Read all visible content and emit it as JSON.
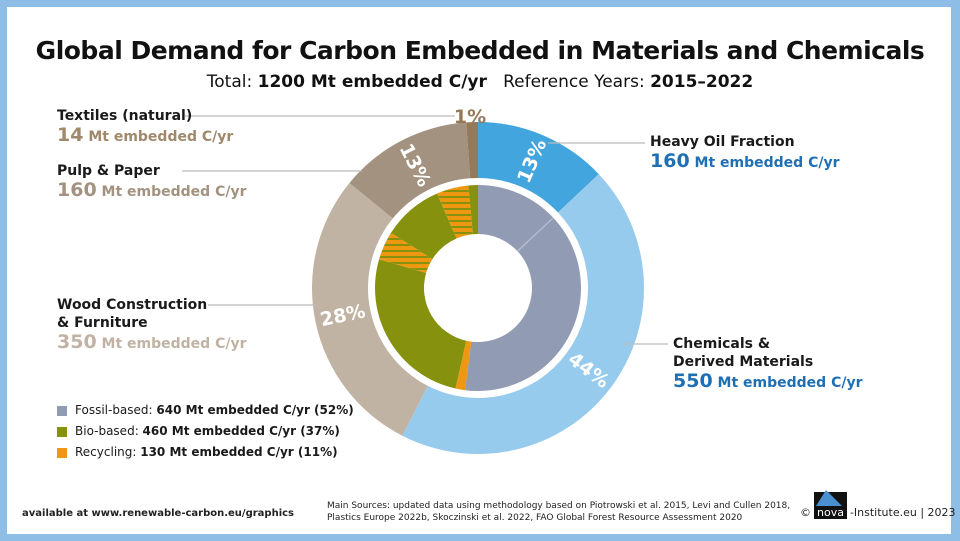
{
  "title": "Global Demand for Carbon Embedded in Materials and Chemicals",
  "subtitle": {
    "prefix": "Total: ",
    "total": "1200 Mt embedded C/yr",
    "mid": "   Reference Years: ",
    "years": "2015–2022"
  },
  "chart_data": {
    "type": "pie",
    "title": "Global Demand for Carbon Embedded in Materials and Chemicals",
    "outer_ring": [
      {
        "name": "Heavy Oil Fraction",
        "value": 160,
        "unit": "Mt embedded C/yr",
        "pct_label": "13%",
        "color": "#42a5de"
      },
      {
        "name": "Chemicals & Derived Materials",
        "value": 550,
        "unit": "Mt embedded C/yr",
        "pct_label": "44%",
        "color": "#97cbee"
      },
      {
        "name": "Wood Construction & Furniture",
        "value": 350,
        "unit": "Mt embedded C/yr",
        "pct_label": "28%",
        "color": "#c1b3a3"
      },
      {
        "name": "Pulp & Paper",
        "value": 160,
        "unit": "Mt embedded C/yr",
        "pct_label": "13%",
        "color": "#a39280"
      },
      {
        "name": "Textiles (natural)",
        "value": 14,
        "unit": "Mt embedded C/yr",
        "pct_label": "1%",
        "color": "#957a5a"
      }
    ],
    "inner_ring": [
      {
        "type": "fossil",
        "pct": 52
      },
      {
        "type": "recycling",
        "pct": 1.5
      },
      {
        "type": "bio",
        "pct": 26
      },
      {
        "type": "recycling-hatched",
        "pct": 4.5
      },
      {
        "type": "bio",
        "pct": 9.5
      },
      {
        "type": "recycling-hatched",
        "pct": 5
      },
      {
        "type": "bio",
        "pct": 1.5
      }
    ],
    "legend": [
      {
        "name": "Fossil-based",
        "value": "640 Mt embedded C/yr (52%)",
        "color": "#929bb4"
      },
      {
        "name": "Bio-based",
        "value": "460 Mt embedded C/yr (37%)",
        "color": "#86920e"
      },
      {
        "name": "Recycling",
        "value": "130 Mt embedded C/yr (11%)",
        "color": "#ee9812"
      }
    ]
  },
  "labels": {
    "textiles": {
      "name": "Textiles (natural)",
      "num": "14",
      "unit": " Mt embedded C/yr"
    },
    "pulp": {
      "name": "Pulp & Paper",
      "num": "160",
      "unit": " Mt embedded C/yr"
    },
    "wood": {
      "name1": "Wood Construction",
      "name2": "& Furniture",
      "num": "350",
      "unit": " Mt embedded C/yr"
    },
    "heavy": {
      "name": "Heavy Oil Fraction",
      "num": "160",
      "unit": " Mt embedded C/yr"
    },
    "chem": {
      "name1": "Chemicals &",
      "name2": "Derived Materials",
      "num": "550",
      "unit": " Mt embedded C/yr"
    }
  },
  "footer": {
    "link": "available at www.renewable-carbon.eu/graphics",
    "sources1": "Main Sources: updated data using methodology based on Piotrowski et al. 2015, Levi and Cullen 2018,",
    "sources2": "Plastics Europe 2022b, Skoczinski et al. 2022, FAO Global Forest Resource Assessment 2020",
    "copy": "©",
    "logo": "nova",
    "credit": "-Institute.eu | 2023"
  }
}
